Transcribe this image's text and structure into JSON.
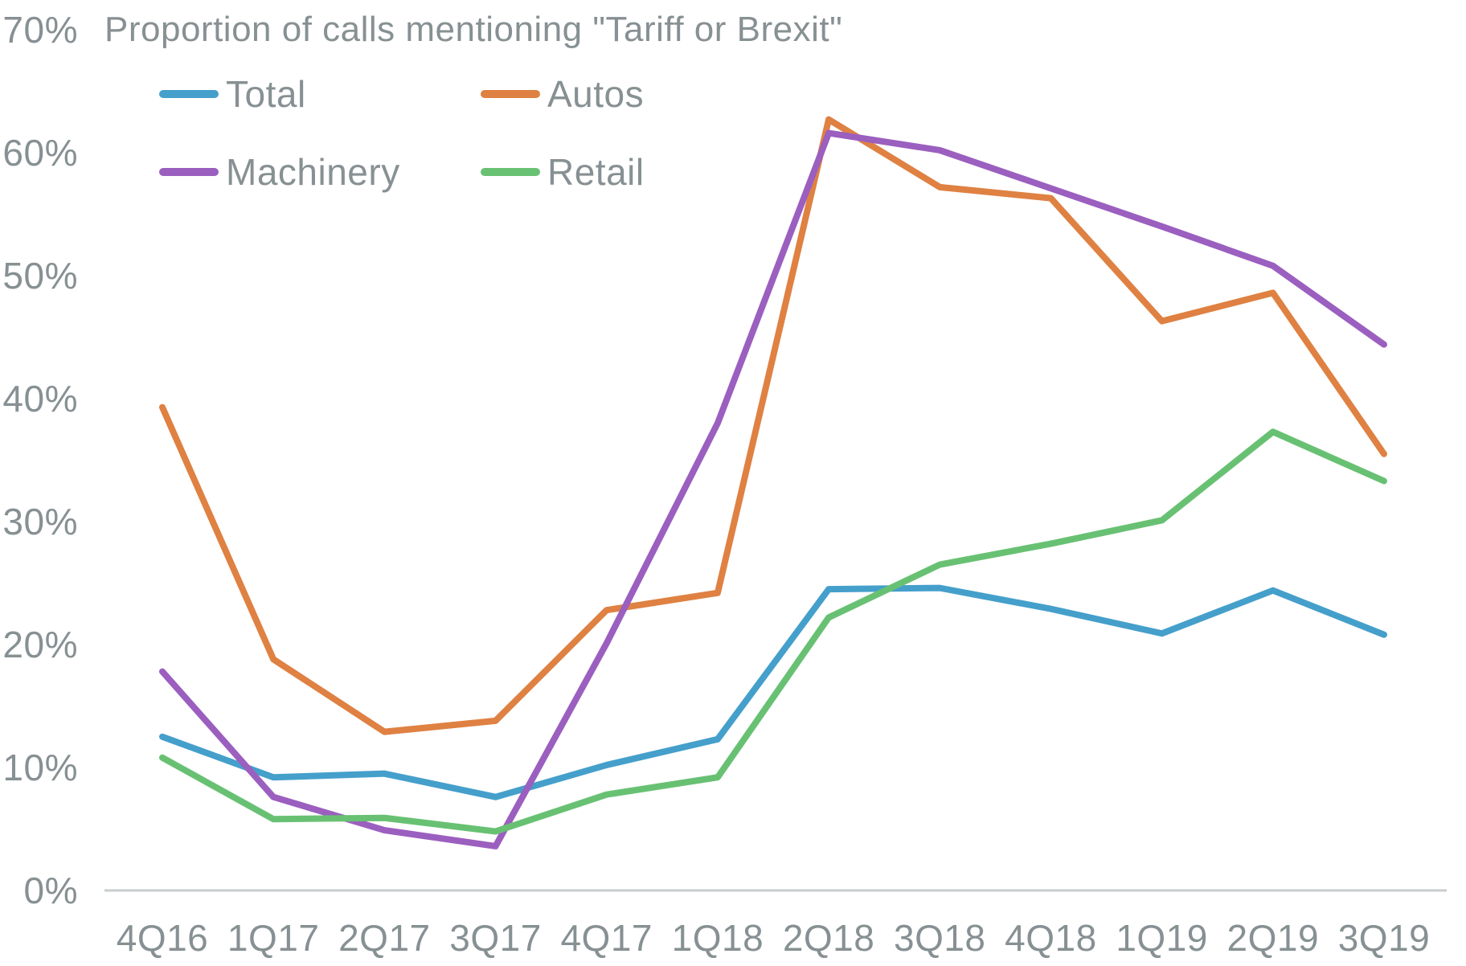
{
  "chart_data": {
    "type": "line",
    "title": "Proportion of calls mentioning \"Tariff or Brexit\"",
    "categories": [
      "4Q16",
      "1Q17",
      "2Q17",
      "3Q17",
      "4Q17",
      "1Q18",
      "2Q18",
      "3Q18",
      "4Q18",
      "1Q19",
      "2Q19",
      "3Q19"
    ],
    "series": [
      {
        "name": "Total",
        "color": "#459FCB",
        "values": [
          12.5,
          9.2,
          9.5,
          7.6,
          10.2,
          12.3,
          24.5,
          24.6,
          22.9,
          20.9,
          24.4,
          20.8
        ]
      },
      {
        "name": "Autos",
        "color": "#DF8142",
        "values": [
          39.3,
          18.8,
          12.9,
          13.8,
          22.8,
          24.2,
          62.7,
          57.2,
          56.3,
          46.3,
          48.6,
          35.5
        ]
      },
      {
        "name": "Machinery",
        "color": "#9B5FBF",
        "values": [
          17.8,
          7.6,
          4.9,
          3.6,
          20.1,
          38.0,
          61.6,
          60.2,
          57.1,
          54.0,
          50.8,
          44.4
        ]
      },
      {
        "name": "Retail",
        "color": "#68C173",
        "values": [
          10.8,
          5.8,
          5.9,
          4.8,
          7.8,
          9.2,
          22.2,
          26.5,
          28.2,
          30.1,
          37.3,
          33.3
        ]
      }
    ],
    "y_axis": {
      "tick_values": [
        0,
        10,
        20,
        30,
        40,
        50,
        60,
        70
      ],
      "tick_labels": [
        "0%",
        "10%",
        "20%",
        "30%",
        "40%",
        "50%",
        "60%",
        "70%"
      ],
      "min": 0,
      "max": 70,
      "grid": false
    },
    "x_axis": {
      "labels": [
        "4Q16",
        "1Q17",
        "2Q17",
        "3Q17",
        "4Q17",
        "1Q18",
        "2Q18",
        "3Q18",
        "4Q18",
        "1Q19",
        "2Q19",
        "3Q19"
      ]
    },
    "legend": {
      "position": "top-left",
      "columns": 2,
      "order": [
        "Total",
        "Autos",
        "Machinery",
        "Retail"
      ]
    },
    "text_color": "#879093",
    "axis_line_color": "#C9CDCE"
  }
}
